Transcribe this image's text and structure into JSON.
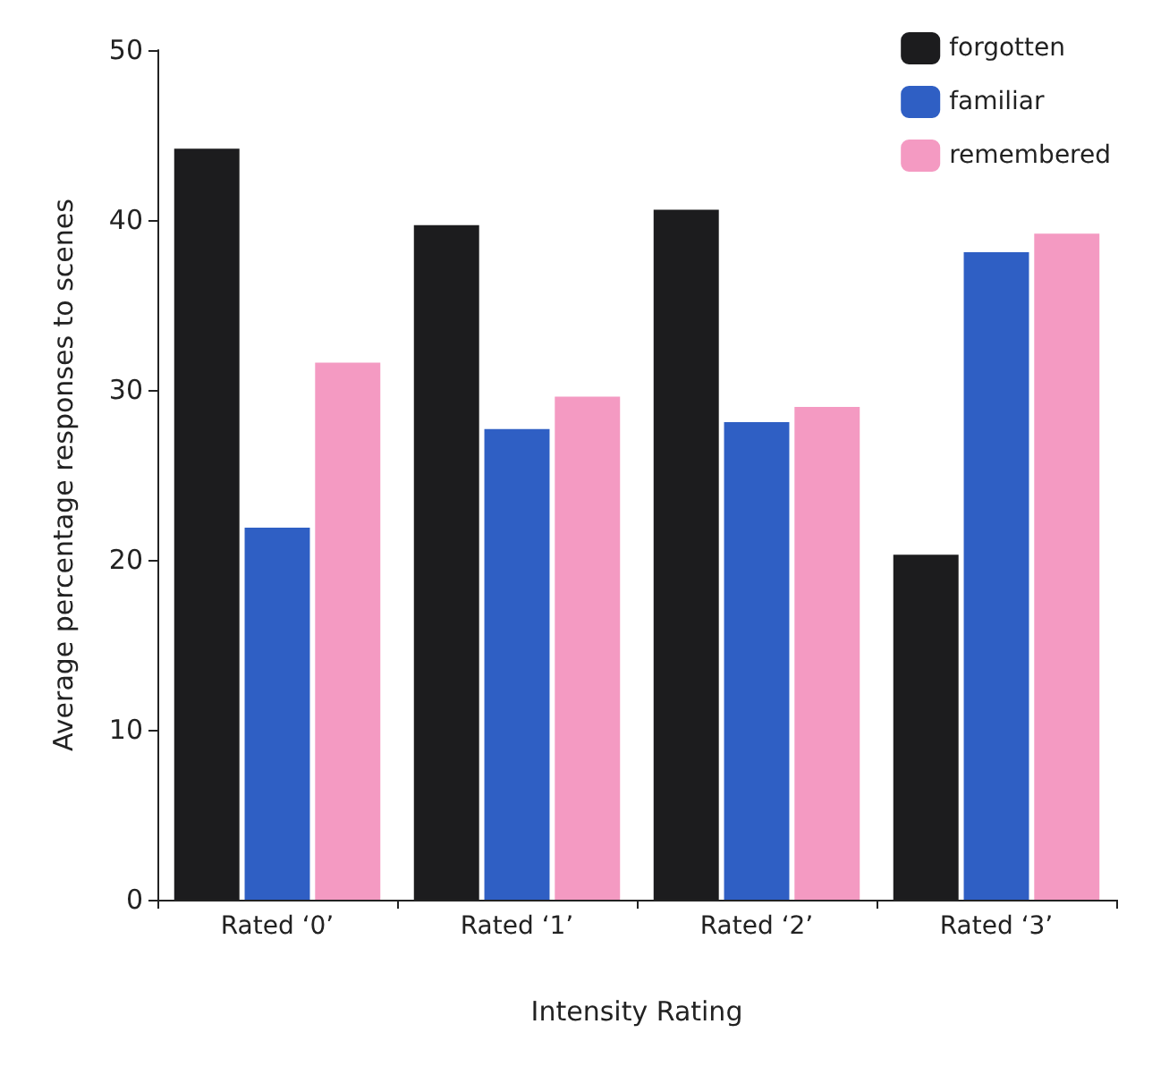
{
  "chart_data": {
    "type": "bar",
    "xlabel": "Intensity Rating",
    "ylabel": "Average percentage responses to scenes",
    "categories": [
      "Rated ‘0’",
      "Rated ‘1’",
      "Rated ‘2’",
      "Rated ‘3’"
    ],
    "series": [
      {
        "name": "forgotten",
        "color": "#1c1c1e",
        "values": [
          44.2,
          39.7,
          40.6,
          20.3
        ]
      },
      {
        "name": "familiar",
        "color": "#2f5fc4",
        "values": [
          21.9,
          27.7,
          28.1,
          38.1
        ]
      },
      {
        "name": "remembered",
        "color": "#f49ac2",
        "values": [
          31.6,
          29.6,
          29.0,
          39.2
        ]
      }
    ],
    "ylim": [
      0,
      50
    ],
    "yticks": [
      0,
      10,
      20,
      30,
      40,
      50
    ],
    "grid": false,
    "legend": "top right"
  }
}
